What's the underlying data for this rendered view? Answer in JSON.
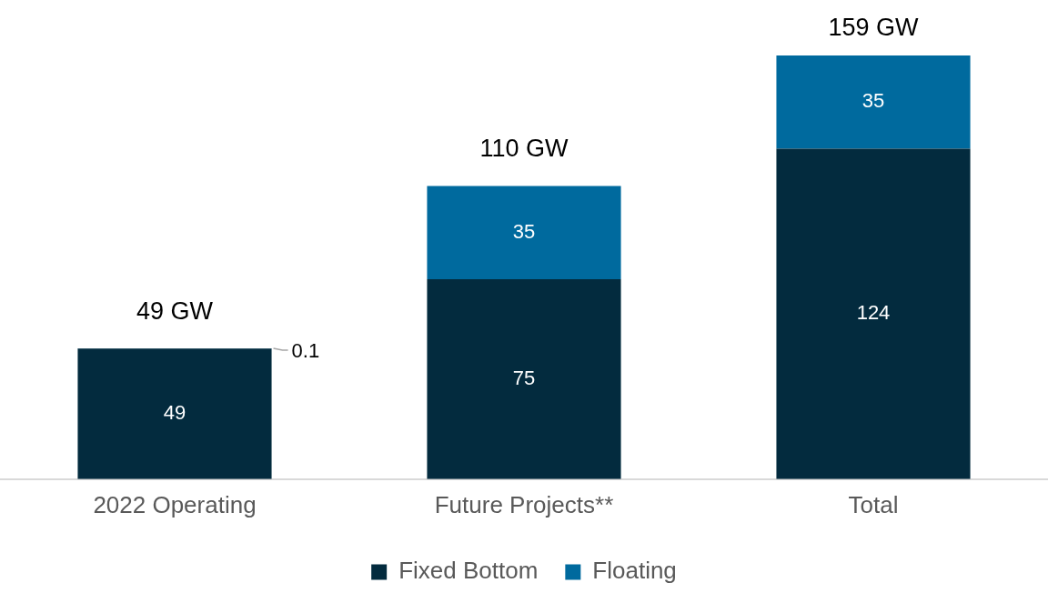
{
  "chart_data": {
    "type": "bar",
    "stacked": true,
    "categories": [
      "2022 Operating",
      "Future Projects**",
      "Total"
    ],
    "series": [
      {
        "name": "Fixed Bottom",
        "color": "#032b3e",
        "values": [
          49,
          75,
          124
        ]
      },
      {
        "name": "Floating",
        "color": "#006a9e",
        "values": [
          0.1,
          35,
          35
        ]
      }
    ],
    "data_labels": true,
    "totals": [
      "49 GW",
      "110 GW",
      "159 GW"
    ],
    "legend": "bottom",
    "grid": false
  }
}
